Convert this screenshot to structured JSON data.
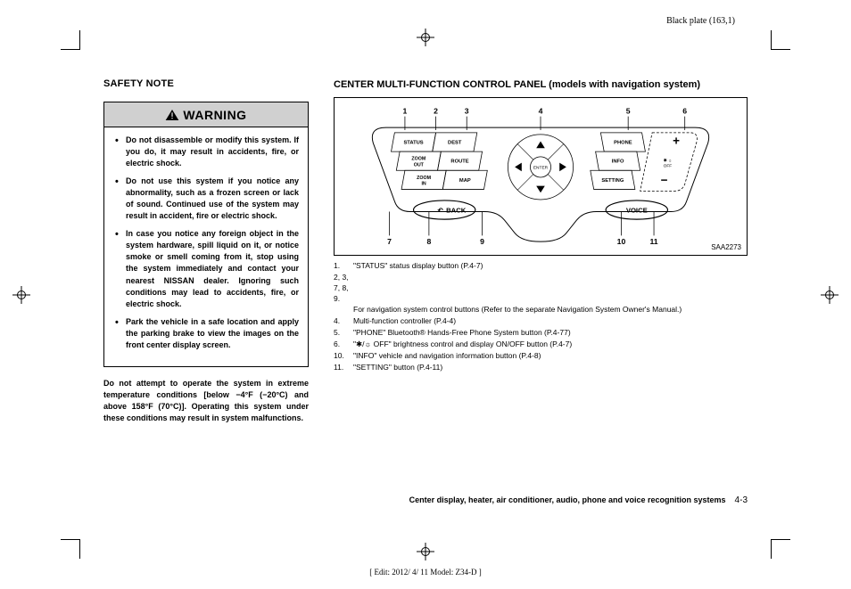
{
  "header": {
    "plate": "Black plate (163,1)"
  },
  "left": {
    "safety_heading": "SAFETY NOTE",
    "warning_title": "WARNING",
    "warnings": [
      "Do not disassemble or modify this system. If you do, it may result in accidents, fire, or electric shock.",
      "Do not use this system if you notice any abnormality, such as a frozen screen or lack of sound. Continued use of the system may result in accident, fire or electric shock.",
      "In case you notice any foreign object in the system hardware, spill liquid on it, or notice smoke or smell coming from it, stop using the system immediately and contact your nearest NISSAN dealer. Ignoring such conditions may lead to accidents, fire, or electric shock.",
      "Park the vehicle in a safe location and apply the parking brake to view the images on the front center display screen."
    ],
    "below": "Do not attempt to operate the system in extreme temperature conditions [below −4°F (−20°C) and above 158°F (70°C)]. Operating this system under these conditions may result in system malfunctions."
  },
  "right": {
    "heading": "CENTER MULTI-FUNCTION CONTROL PANEL (models with navigation system)",
    "figure_id": "SAA2273",
    "callouts": {
      "top": [
        "1",
        "2",
        "3",
        "4",
        "5",
        "6"
      ],
      "bottom": [
        "7",
        "8",
        "9",
        "10",
        "11"
      ]
    },
    "panel_buttons": {
      "left": [
        [
          "STATUS",
          "DEST"
        ],
        [
          "ZOOM OUT",
          "ROUTE"
        ],
        [
          "ZOOM IN",
          "MAP"
        ]
      ],
      "right_labels": [
        "PHONE",
        "INFO",
        "SETTING"
      ],
      "center": "ENTER",
      "back": "BACK",
      "voice": "VOICE"
    },
    "legend": [
      {
        "n": "1.",
        "t": "\"STATUS\" status display button (P.4-7)"
      },
      {
        "n": "2, 3, 7, 8, 9.",
        "t": ""
      },
      {
        "indent": true,
        "t": "For navigation system control buttons (Refer to the separate Navigation System Owner's Manual.)"
      },
      {
        "n": "4.",
        "t": "Multi-function controller (P.4-4)"
      },
      {
        "n": "5.",
        "t": "\"PHONE\" Bluetooth® Hands-Free Phone System button (P.4-77)"
      },
      {
        "n": "6.",
        "t": "\"✱/☼ OFF\" brightness control and display ON/OFF button (P.4-7)"
      },
      {
        "n": "10.",
        "t": "\"INFO\" vehicle and navigation information button (P.4-8)"
      },
      {
        "n": "11.",
        "t": "\"SETTING\" button (P.4-11)"
      }
    ]
  },
  "footer": {
    "section": "Center display, heater, air conditioner, audio, phone and voice recognition systems",
    "page": "4-3",
    "edit": "[ Edit: 2012/ 4/ 11   Model: Z34-D ]"
  },
  "style": {
    "warning_bg": "#d0d0d0",
    "font_body": 9,
    "font_heading": 11
  }
}
